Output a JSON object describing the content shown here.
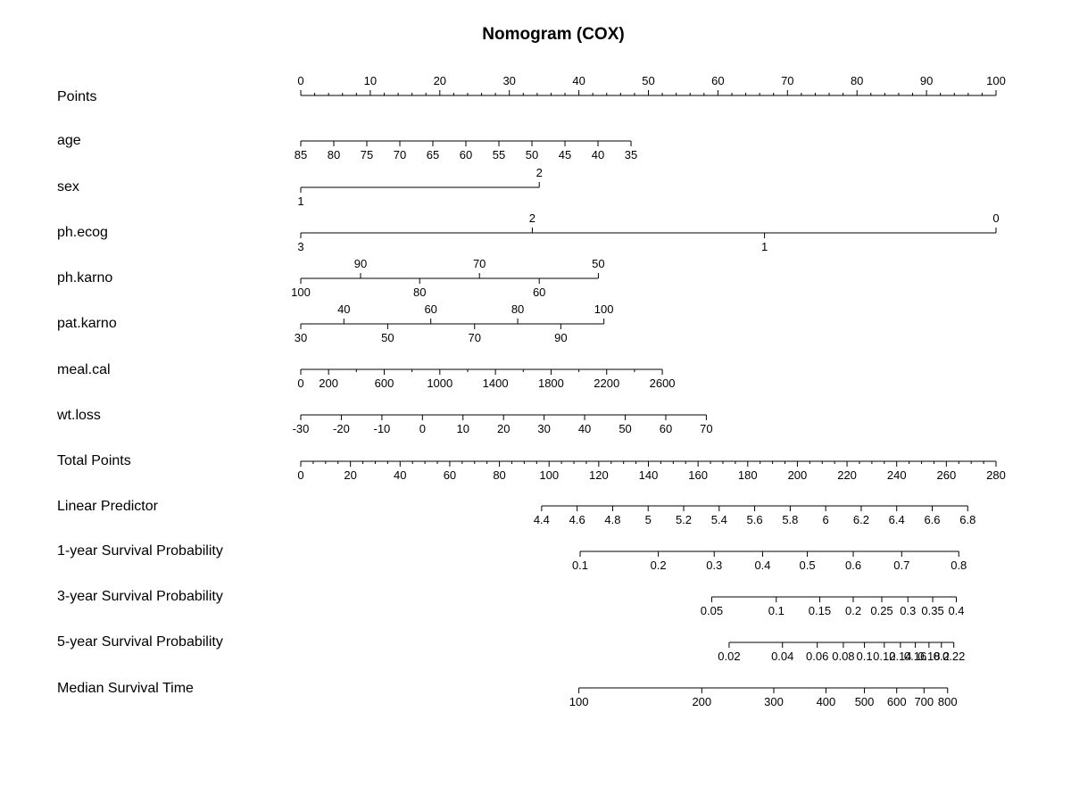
{
  "chart_data": {
    "type": "nomogram",
    "title": "Nomogram (COX)",
    "rows": [
      {
        "name": "Points",
        "scale": [
          0,
          100
        ],
        "labels": [
          [
            0,
            "0"
          ],
          [
            10,
            "10"
          ],
          [
            20,
            "20"
          ],
          [
            30,
            "30"
          ],
          [
            40,
            "40"
          ],
          [
            50,
            "50"
          ],
          [
            60,
            "60"
          ],
          [
            70,
            "70"
          ],
          [
            80,
            "80"
          ],
          [
            90,
            "90"
          ],
          [
            100,
            "100"
          ]
        ],
        "minor": [
          0,
          2,
          4,
          6,
          8,
          10,
          12,
          14,
          16,
          18,
          20,
          22,
          24,
          26,
          28,
          30,
          32,
          34,
          36,
          38,
          40,
          42,
          44,
          46,
          48,
          50,
          52,
          54,
          56,
          58,
          60,
          62,
          64,
          66,
          68,
          70,
          72,
          74,
          76,
          78,
          80,
          82,
          84,
          86,
          88,
          90,
          92,
          94,
          96,
          98,
          100
        ]
      },
      {
        "name": "age",
        "labels": [
          [
            0,
            "85"
          ],
          [
            4.75,
            "80"
          ],
          [
            9.5,
            "75"
          ],
          [
            14.25,
            "70"
          ],
          [
            19,
            "65"
          ],
          [
            23.75,
            "60"
          ],
          [
            28.5,
            "55"
          ],
          [
            33.25,
            "50"
          ],
          [
            38,
            "45"
          ],
          [
            42.75,
            "40"
          ],
          [
            47.5,
            "35"
          ]
        ]
      },
      {
        "name": "sex",
        "labels": [
          [
            0,
            "1"
          ],
          [
            34.3,
            "2"
          ]
        ]
      },
      {
        "name": "ph.ecog",
        "labels": [
          [
            0,
            "3"
          ],
          [
            33.3,
            "2"
          ],
          [
            66.7,
            "1"
          ],
          [
            100,
            "0"
          ]
        ]
      },
      {
        "name": "ph.karno",
        "labels": [
          [
            0,
            "100"
          ],
          [
            8.6,
            "90"
          ],
          [
            17.1,
            "80"
          ],
          [
            25.7,
            "70"
          ],
          [
            34.3,
            "60"
          ],
          [
            42.8,
            "50"
          ]
        ]
      },
      {
        "name": "pat.karno",
        "labels": [
          [
            0,
            "30"
          ],
          [
            6.2,
            "40"
          ],
          [
            12.5,
            "50"
          ],
          [
            18.7,
            "60"
          ],
          [
            25,
            "70"
          ],
          [
            31.2,
            "80"
          ],
          [
            37.4,
            "90"
          ],
          [
            43.6,
            "100"
          ]
        ]
      },
      {
        "name": "meal.cal",
        "labels": [
          [
            0,
            "0"
          ],
          [
            4,
            "200"
          ],
          [
            12,
            "600"
          ],
          [
            20,
            "1000"
          ],
          [
            28,
            "1400"
          ],
          [
            36,
            "1800"
          ],
          [
            44,
            "2200"
          ],
          [
            52,
            "2600"
          ]
        ],
        "minor": [
          0,
          4,
          8,
          12,
          16,
          20,
          24,
          28,
          32,
          36,
          40,
          44,
          48,
          52
        ]
      },
      {
        "name": "wt.loss",
        "labels": [
          [
            0,
            "-30"
          ],
          [
            5.83,
            "-20"
          ],
          [
            11.67,
            "-10"
          ],
          [
            17.5,
            "0"
          ],
          [
            23.33,
            "10"
          ],
          [
            29.17,
            "20"
          ],
          [
            35,
            "30"
          ],
          [
            40.83,
            "40"
          ],
          [
            46.67,
            "50"
          ],
          [
            52.5,
            "60"
          ],
          [
            58.33,
            "70"
          ]
        ]
      },
      {
        "name": "Total Points",
        "scale": [
          0,
          280
        ],
        "labels": [
          [
            0,
            "0"
          ],
          [
            20,
            "20"
          ],
          [
            40,
            "40"
          ],
          [
            60,
            "60"
          ],
          [
            80,
            "80"
          ],
          [
            100,
            "100"
          ],
          [
            120,
            "120"
          ],
          [
            140,
            "140"
          ],
          [
            160,
            "160"
          ],
          [
            180,
            "180"
          ],
          [
            200,
            "200"
          ],
          [
            220,
            "220"
          ],
          [
            240,
            "240"
          ],
          [
            260,
            "260"
          ],
          [
            280,
            "280"
          ]
        ],
        "minor": [
          0,
          5,
          10,
          15,
          20,
          25,
          30,
          35,
          40,
          45,
          50,
          55,
          60,
          65,
          70,
          75,
          80,
          85,
          90,
          95,
          100,
          105,
          110,
          115,
          120,
          125,
          130,
          135,
          140,
          145,
          150,
          155,
          160,
          165,
          170,
          175,
          180,
          185,
          190,
          195,
          200,
          205,
          210,
          215,
          220,
          225,
          230,
          235,
          240,
          245,
          250,
          255,
          260,
          265,
          270,
          275,
          280
        ]
      },
      {
        "name": "Linear Predictor",
        "scale": [
          0,
          280
        ],
        "labels": [
          [
            97,
            "4.4"
          ],
          [
            111.3,
            "4.6"
          ],
          [
            125.6,
            "4.8"
          ],
          [
            139.9,
            "5"
          ],
          [
            154.2,
            "5.2"
          ],
          [
            168.5,
            "5.4"
          ],
          [
            182.8,
            "5.6"
          ],
          [
            197.1,
            "5.8"
          ],
          [
            211.4,
            "6"
          ],
          [
            225.7,
            "6.2"
          ],
          [
            240,
            "6.4"
          ],
          [
            254.3,
            "6.6"
          ],
          [
            268.6,
            "6.8"
          ]
        ]
      },
      {
        "name": "1-year Survival Probability",
        "scale": [
          0,
          280
        ],
        "labels": [
          [
            112.5,
            "0.1"
          ],
          [
            144,
            "0.2"
          ],
          [
            166.5,
            "0.3"
          ],
          [
            186,
            "0.4"
          ],
          [
            204,
            "0.5"
          ],
          [
            222.5,
            "0.6"
          ],
          [
            242,
            "0.7"
          ],
          [
            265,
            "0.8"
          ]
        ]
      },
      {
        "name": "3-year Survival Probability",
        "scale": [
          0,
          280
        ],
        "labels": [
          [
            165.5,
            "0.05"
          ],
          [
            191.5,
            "0.1"
          ],
          [
            209,
            "0.15"
          ],
          [
            222.5,
            "0.2"
          ],
          [
            234,
            "0.25"
          ],
          [
            244.5,
            "0.3"
          ],
          [
            254.5,
            "0.35"
          ],
          [
            264,
            "0.4"
          ]
        ]
      },
      {
        "name": "5-year Survival Probability",
        "scale": [
          0,
          280
        ],
        "labels": [
          [
            172.5,
            "0.02"
          ],
          [
            194,
            "0.04"
          ],
          [
            208,
            "0.06"
          ],
          [
            218.5,
            "0.08"
          ],
          [
            227,
            "0.1"
          ],
          [
            235,
            "0.12"
          ],
          [
            241.5,
            "0.14"
          ],
          [
            247.5,
            "0.16"
          ],
          [
            253,
            "0.18"
          ],
          [
            258,
            "0.2"
          ],
          [
            263,
            "0.22"
          ]
        ]
      },
      {
        "name": "Median Survival Time",
        "scale": [
          0,
          280
        ],
        "labels": [
          [
            112,
            "100"
          ],
          [
            161.5,
            "200"
          ],
          [
            190.5,
            "300"
          ],
          [
            211.5,
            "400"
          ],
          [
            227,
            "500"
          ],
          [
            240,
            "600"
          ],
          [
            251,
            "700"
          ],
          [
            260.5,
            "800"
          ]
        ]
      }
    ]
  }
}
